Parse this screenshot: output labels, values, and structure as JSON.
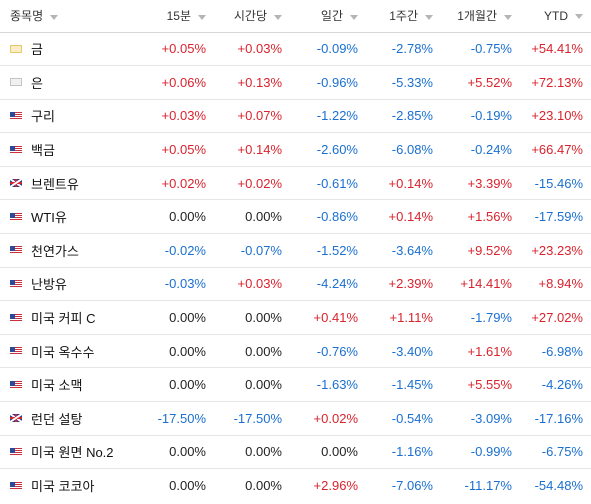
{
  "header": {
    "name": "종목명",
    "cols": [
      "15분",
      "시간당",
      "일간",
      "1주간",
      "1개월간",
      "YTD"
    ]
  },
  "colors": {
    "positive": "#d9232d",
    "negative": "#1a6fd0",
    "neutral": "#222222"
  },
  "rows": [
    {
      "name": "금",
      "flag": "gold-icon",
      "values": [
        "+0.05%",
        "+0.03%",
        "-0.09%",
        "-2.78%",
        "-0.75%",
        "+54.41%"
      ]
    },
    {
      "name": "은",
      "flag": "silver-icon",
      "values": [
        "+0.06%",
        "+0.13%",
        "-0.96%",
        "-5.33%",
        "+5.52%",
        "+72.13%"
      ]
    },
    {
      "name": "구리",
      "flag": "us-flag-icon",
      "values": [
        "+0.03%",
        "+0.07%",
        "-1.22%",
        "-2.85%",
        "-0.19%",
        "+23.10%"
      ]
    },
    {
      "name": "백금",
      "flag": "us-flag-icon",
      "values": [
        "+0.05%",
        "+0.14%",
        "-2.60%",
        "-6.08%",
        "-0.24%",
        "+66.47%"
      ]
    },
    {
      "name": "브렌트유",
      "flag": "uk-flag-icon",
      "values": [
        "+0.02%",
        "+0.02%",
        "-0.61%",
        "+0.14%",
        "+3.39%",
        "-15.46%"
      ]
    },
    {
      "name": "WTI유",
      "flag": "us-flag-icon",
      "values": [
        "0.00%",
        "0.00%",
        "-0.86%",
        "+0.14%",
        "+1.56%",
        "-17.59%"
      ]
    },
    {
      "name": "천연가스",
      "flag": "us-flag-icon",
      "values": [
        "-0.02%",
        "-0.07%",
        "-1.52%",
        "-3.64%",
        "+9.52%",
        "+23.23%"
      ]
    },
    {
      "name": "난방유",
      "flag": "us-flag-icon",
      "values": [
        "-0.03%",
        "+0.03%",
        "-4.24%",
        "+2.39%",
        "+14.41%",
        "+8.94%"
      ]
    },
    {
      "name": "미국 커피 C",
      "flag": "us-flag-icon",
      "values": [
        "0.00%",
        "0.00%",
        "+0.41%",
        "+1.11%",
        "-1.79%",
        "+27.02%"
      ]
    },
    {
      "name": "미국 옥수수",
      "flag": "us-flag-icon",
      "values": [
        "0.00%",
        "0.00%",
        "-0.76%",
        "-3.40%",
        "+1.61%",
        "-6.98%"
      ]
    },
    {
      "name": "미국 소맥",
      "flag": "us-flag-icon",
      "values": [
        "0.00%",
        "0.00%",
        "-1.63%",
        "-1.45%",
        "+5.55%",
        "-4.26%"
      ]
    },
    {
      "name": "런던 설탕",
      "flag": "uk-flag-icon",
      "values": [
        "-17.50%",
        "-17.50%",
        "+0.02%",
        "-0.54%",
        "-3.09%",
        "-17.16%"
      ]
    },
    {
      "name": "미국 원면 No.2",
      "flag": "us-flag-icon",
      "values": [
        "0.00%",
        "0.00%",
        "0.00%",
        "-1.16%",
        "-0.99%",
        "-6.75%"
      ]
    },
    {
      "name": "미국 코코아",
      "flag": "us-flag-icon",
      "values": [
        "0.00%",
        "0.00%",
        "+2.96%",
        "-7.06%",
        "-11.17%",
        "-54.48%"
      ]
    }
  ]
}
